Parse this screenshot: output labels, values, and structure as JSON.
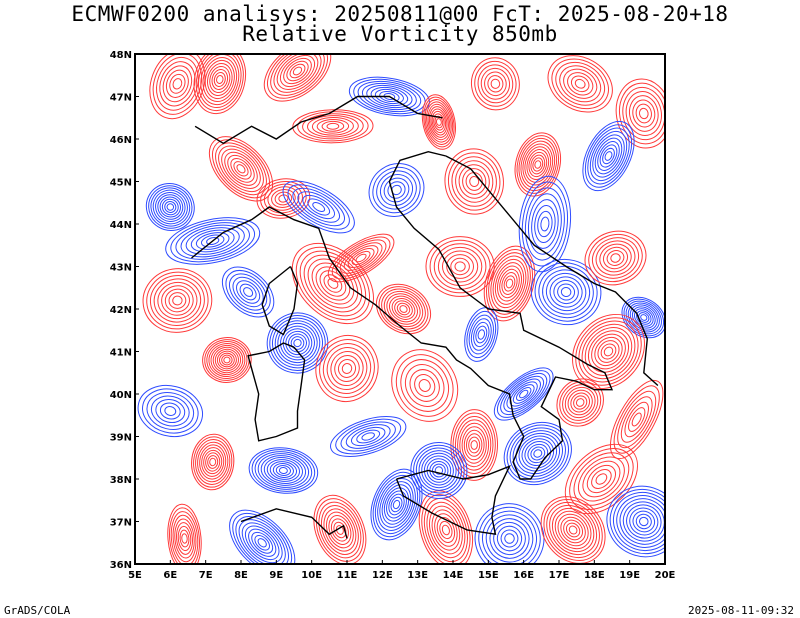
{
  "title_line1": "ECMWF0200 analisys: 20250811@00 FcT: 2025-08-20+18",
  "title_line2": "Relative Vorticity 850mb",
  "footer_left": "GrADS/COLA",
  "footer_right": "2025-08-11-09:32",
  "map": {
    "lon_range": [
      5,
      20
    ],
    "lat_range": [
      36,
      48
    ],
    "lon_ticks": [
      {
        "value": 5,
        "label": "5E"
      },
      {
        "value": 6,
        "label": "6E"
      },
      {
        "value": 7,
        "label": "7E"
      },
      {
        "value": 8,
        "label": "8E"
      },
      {
        "value": 9,
        "label": "9E"
      },
      {
        "value": 10,
        "label": "10E"
      },
      {
        "value": 11,
        "label": "11E"
      },
      {
        "value": 12,
        "label": "12E"
      },
      {
        "value": 13,
        "label": "13E"
      },
      {
        "value": 14,
        "label": "14E"
      },
      {
        "value": 15,
        "label": "15E"
      },
      {
        "value": 16,
        "label": "16E"
      },
      {
        "value": 17,
        "label": "17E"
      },
      {
        "value": 18,
        "label": "18E"
      },
      {
        "value": 19,
        "label": "19E"
      },
      {
        "value": 20,
        "label": "20E"
      }
    ],
    "lat_ticks": [
      {
        "value": 36,
        "label": "36N"
      },
      {
        "value": 37,
        "label": "37N"
      },
      {
        "value": 38,
        "label": "38N"
      },
      {
        "value": 39,
        "label": "39N"
      },
      {
        "value": 40,
        "label": "40N"
      },
      {
        "value": 41,
        "label": "41N"
      },
      {
        "value": 42,
        "label": "42N"
      },
      {
        "value": 43,
        "label": "43N"
      },
      {
        "value": 44,
        "label": "44N"
      },
      {
        "value": 45,
        "label": "45N"
      },
      {
        "value": 46,
        "label": "46N"
      },
      {
        "value": 47,
        "label": "47N"
      },
      {
        "value": 48,
        "label": "48N"
      }
    ],
    "colors": {
      "positive_contour": "#ff3a3a",
      "negative_contour": "#2f4cff",
      "coastline": "#000000",
      "frame": "#000000"
    },
    "vorticity_centers": [
      {
        "lon": 6.2,
        "lat": 47.3,
        "sign": "positive"
      },
      {
        "lon": 7.4,
        "lat": 47.4,
        "sign": "positive"
      },
      {
        "lon": 9.6,
        "lat": 47.6,
        "sign": "positive"
      },
      {
        "lon": 10.6,
        "lat": 46.3,
        "sign": "positive"
      },
      {
        "lon": 12.2,
        "lat": 47.0,
        "sign": "negative"
      },
      {
        "lon": 13.6,
        "lat": 46.4,
        "sign": "positive"
      },
      {
        "lon": 15.2,
        "lat": 47.3,
        "sign": "positive"
      },
      {
        "lon": 17.6,
        "lat": 47.3,
        "sign": "positive"
      },
      {
        "lon": 19.4,
        "lat": 46.6,
        "sign": "positive"
      },
      {
        "lon": 18.4,
        "lat": 45.6,
        "sign": "negative"
      },
      {
        "lon": 16.4,
        "lat": 45.4,
        "sign": "positive"
      },
      {
        "lon": 14.6,
        "lat": 45.0,
        "sign": "positive"
      },
      {
        "lon": 8.0,
        "lat": 45.3,
        "sign": "positive"
      },
      {
        "lon": 9.2,
        "lat": 44.6,
        "sign": "positive"
      },
      {
        "lon": 6.0,
        "lat": 44.4,
        "sign": "negative"
      },
      {
        "lon": 7.2,
        "lat": 43.6,
        "sign": "negative"
      },
      {
        "lon": 6.2,
        "lat": 42.2,
        "sign": "positive"
      },
      {
        "lon": 8.2,
        "lat": 42.4,
        "sign": "negative"
      },
      {
        "lon": 9.6,
        "lat": 41.2,
        "sign": "negative"
      },
      {
        "lon": 10.6,
        "lat": 42.6,
        "sign": "positive"
      },
      {
        "lon": 11.4,
        "lat": 43.2,
        "sign": "positive"
      },
      {
        "lon": 12.6,
        "lat": 42.0,
        "sign": "positive"
      },
      {
        "lon": 14.2,
        "lat": 43.0,
        "sign": "positive"
      },
      {
        "lon": 15.6,
        "lat": 42.6,
        "sign": "positive"
      },
      {
        "lon": 17.2,
        "lat": 42.4,
        "sign": "negative"
      },
      {
        "lon": 18.6,
        "lat": 43.2,
        "sign": "positive"
      },
      {
        "lon": 19.4,
        "lat": 41.8,
        "sign": "negative"
      },
      {
        "lon": 18.4,
        "lat": 41.0,
        "sign": "positive"
      },
      {
        "lon": 14.8,
        "lat": 41.4,
        "sign": "negative"
      },
      {
        "lon": 13.2,
        "lat": 40.2,
        "sign": "positive"
      },
      {
        "lon": 16.0,
        "lat": 40.0,
        "sign": "negative"
      },
      {
        "lon": 17.6,
        "lat": 39.8,
        "sign": "positive"
      },
      {
        "lon": 19.2,
        "lat": 39.4,
        "sign": "positive"
      },
      {
        "lon": 11.6,
        "lat": 39.0,
        "sign": "negative"
      },
      {
        "lon": 14.6,
        "lat": 38.8,
        "sign": "positive"
      },
      {
        "lon": 16.4,
        "lat": 38.6,
        "sign": "negative"
      },
      {
        "lon": 18.2,
        "lat": 38.0,
        "sign": "positive"
      },
      {
        "lon": 6.0,
        "lat": 39.6,
        "sign": "negative"
      },
      {
        "lon": 7.2,
        "lat": 38.4,
        "sign": "positive"
      },
      {
        "lon": 9.2,
        "lat": 38.2,
        "sign": "negative"
      },
      {
        "lon": 12.4,
        "lat": 37.4,
        "sign": "negative"
      },
      {
        "lon": 13.8,
        "lat": 36.8,
        "sign": "positive"
      },
      {
        "lon": 15.6,
        "lat": 36.6,
        "sign": "negative"
      },
      {
        "lon": 17.4,
        "lat": 36.8,
        "sign": "positive"
      },
      {
        "lon": 19.4,
        "lat": 37.0,
        "sign": "negative"
      },
      {
        "lon": 6.4,
        "lat": 36.6,
        "sign": "positive"
      },
      {
        "lon": 8.6,
        "lat": 36.5,
        "sign": "negative"
      },
      {
        "lon": 10.8,
        "lat": 36.8,
        "sign": "positive"
      },
      {
        "lon": 7.6,
        "lat": 40.8,
        "sign": "positive"
      },
      {
        "lon": 10.2,
        "lat": 44.4,
        "sign": "negative"
      },
      {
        "lon": 12.4,
        "lat": 44.8,
        "sign": "negative"
      },
      {
        "lon": 16.6,
        "lat": 44.0,
        "sign": "negative"
      },
      {
        "lon": 13.6,
        "lat": 38.2,
        "sign": "negative"
      },
      {
        "lon": 11.0,
        "lat": 40.6,
        "sign": "positive"
      }
    ]
  }
}
